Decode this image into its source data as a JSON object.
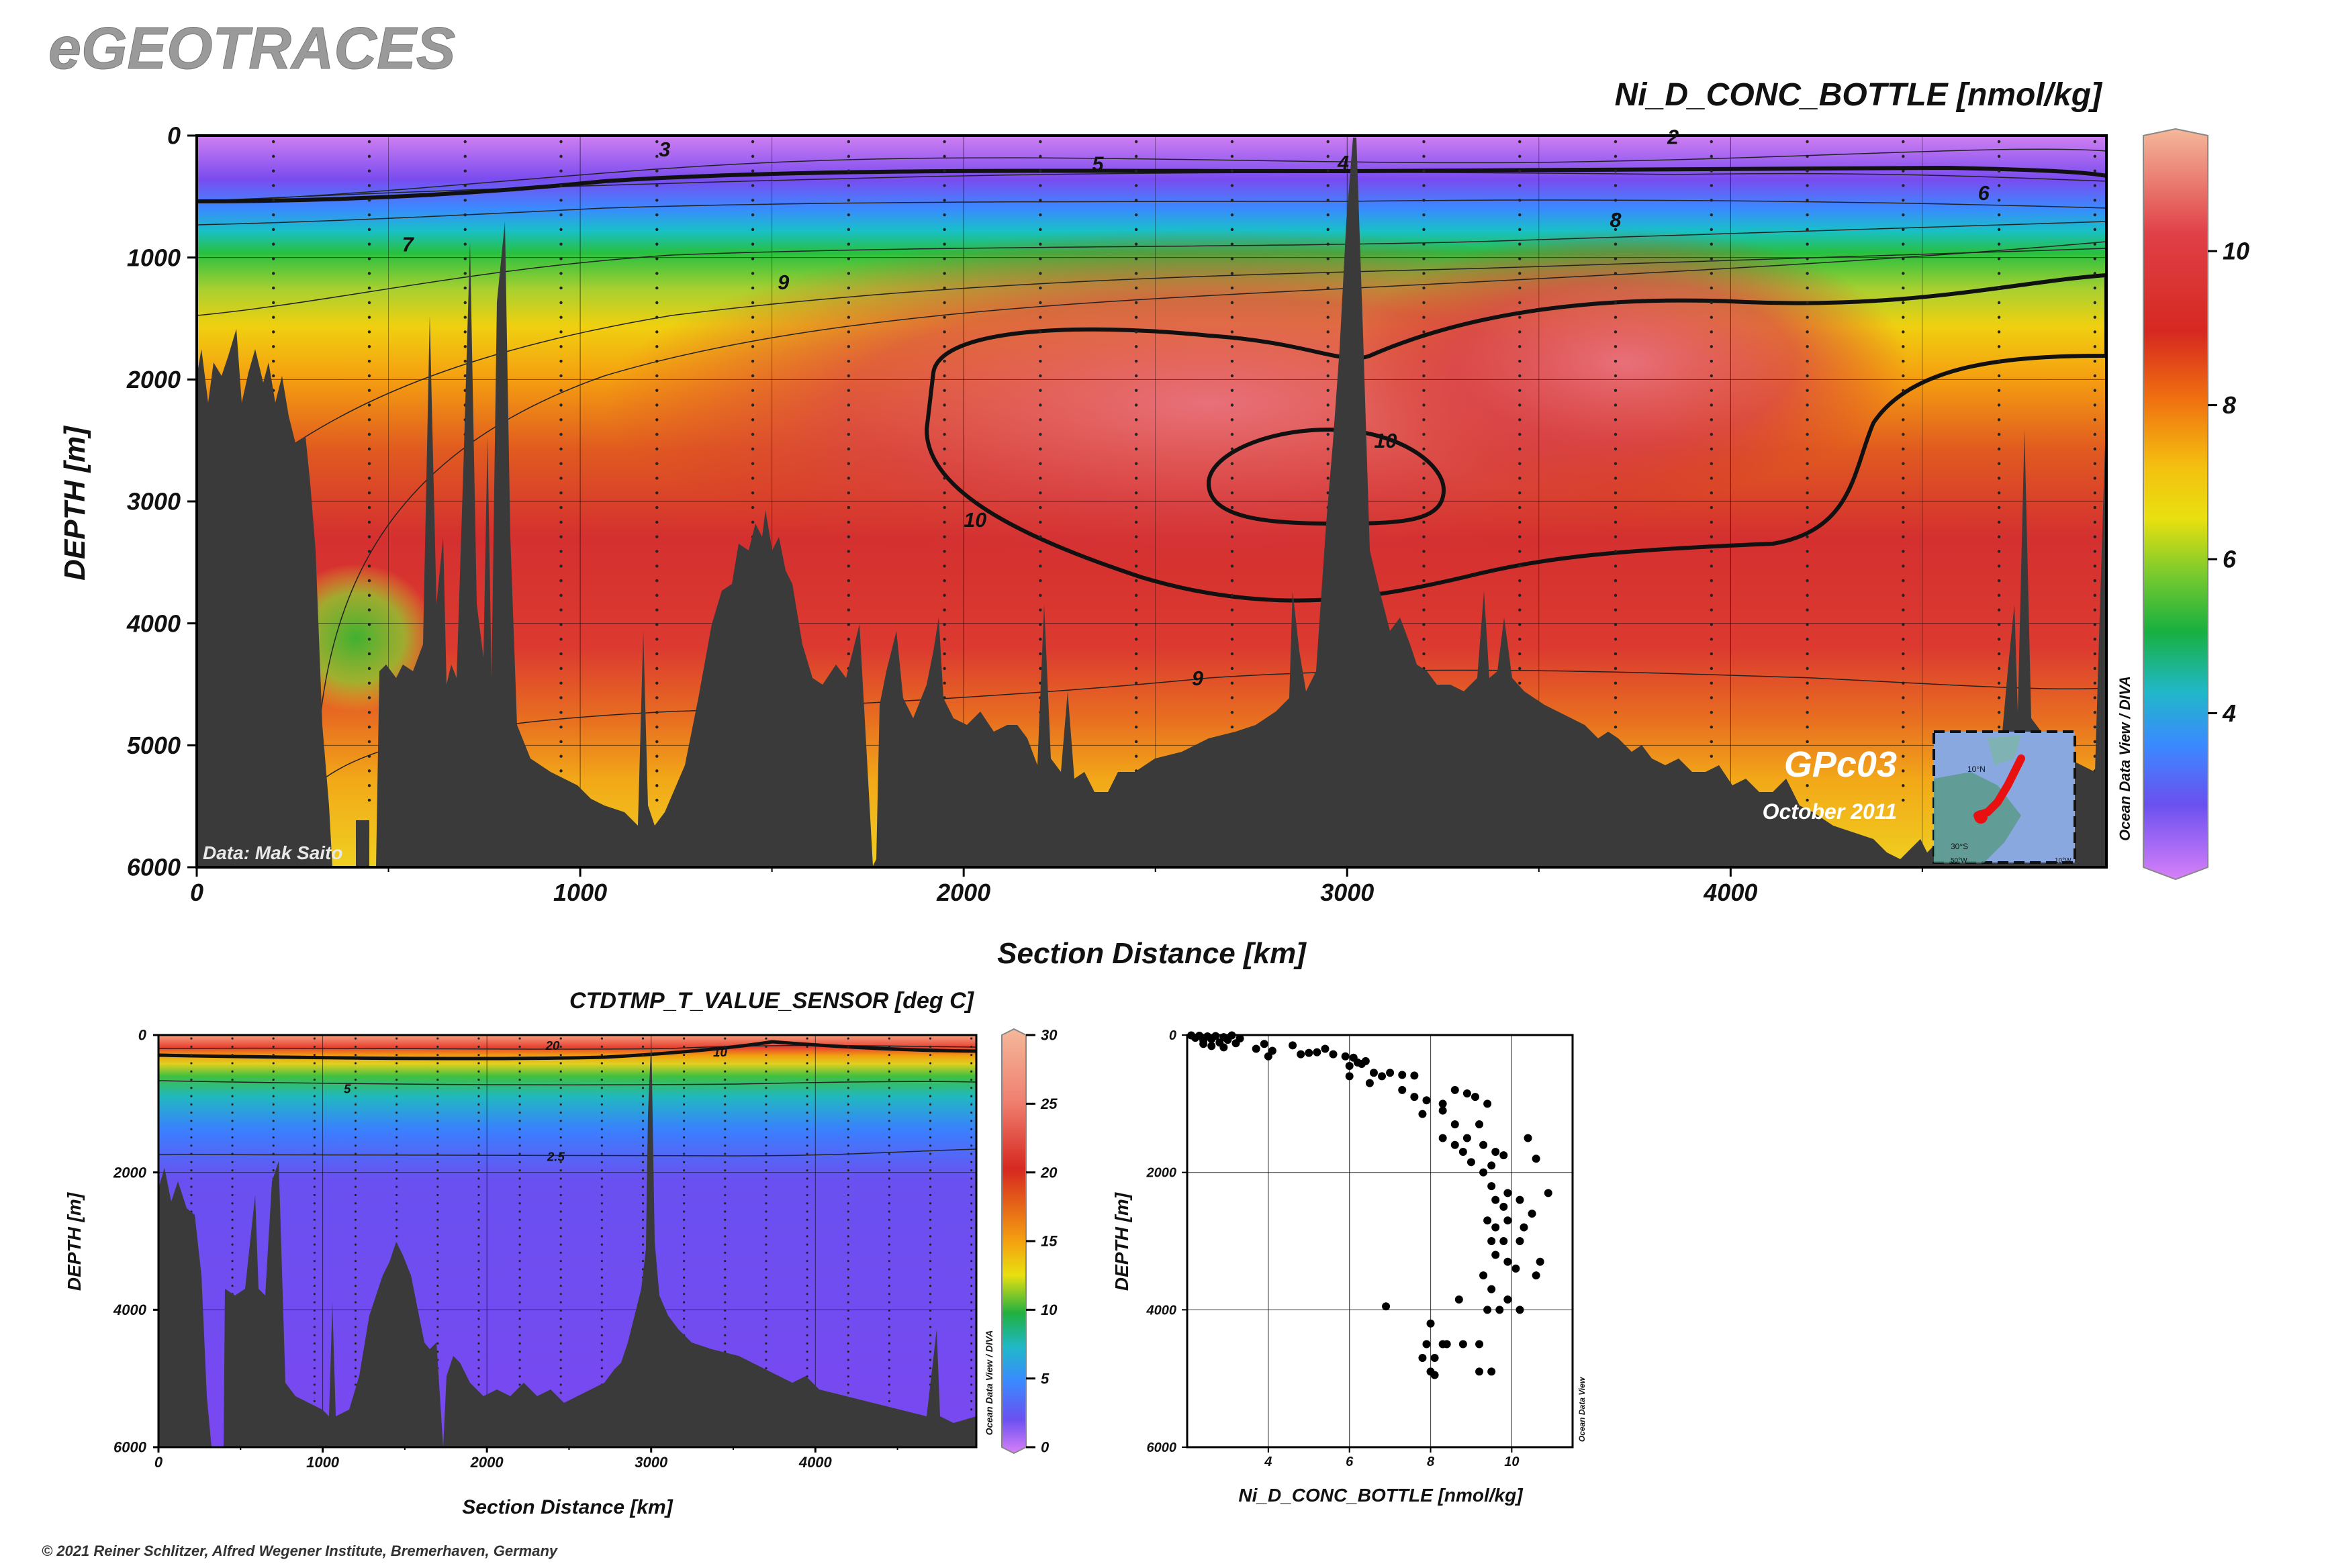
{
  "brand": "eGEOTRACES",
  "copyright": "© 2021 Reiner Schlitzer, Alfred Wegener Institute, Bremerhaven, Germany",
  "section_top": {
    "title": "Ni_D_CONC_BOTTLE [nmol/kg]",
    "xlabel": "Section Distance [km]",
    "ylabel": "DEPTH [m]",
    "credit": "Data: Mak Saito",
    "cruise": "GPc03",
    "date": "October 2011",
    "watermark": "Ocean Data View / DIVA",
    "map_labels": [
      "10°N",
      "30°S",
      "50°W",
      "10°W"
    ]
  },
  "section_bottom": {
    "title": "CTDTMP_T_VALUE_SENSOR [deg C]",
    "xlabel": "Section Distance [km]",
    "ylabel": "DEPTH [m]",
    "watermark": "Ocean Data View / DIVA"
  },
  "profile": {
    "xlabel": "Ni_D_CONC_BOTTLE [nmol/kg]",
    "ylabel": "DEPTH [m]",
    "watermark": "Ocean Data View"
  },
  "chart_data": [
    {
      "type": "heatmap",
      "name": "Ni_D_CONC_BOTTLE section",
      "title": "Ni_D_CONC_BOTTLE [nmol/kg]",
      "xlabel": "Section Distance [km]",
      "ylabel": "DEPTH [m]",
      "xlim": [
        0,
        4980
      ],
      "ylim": [
        6000,
        0
      ],
      "x_ticks": [
        0,
        1000,
        2000,
        3000,
        4000
      ],
      "y_ticks": [
        0,
        1000,
        2000,
        3000,
        4000,
        5000,
        6000
      ],
      "colorbar": {
        "range": [
          2,
          11.5
        ],
        "ticks": [
          4,
          6,
          8,
          10
        ]
      },
      "contour_labels": [
        {
          "value": "3",
          "x": 1220,
          "y": 110
        },
        {
          "value": "5",
          "x": 2350,
          "y": 230
        },
        {
          "value": "4",
          "x": 2990,
          "y": 220
        },
        {
          "value": "2",
          "x": 3850,
          "y": 10
        },
        {
          "value": "6",
          "x": 4660,
          "y": 470
        },
        {
          "value": "7",
          "x": 550,
          "y": 890
        },
        {
          "value": "8",
          "x": 3700,
          "y": 690
        },
        {
          "value": "9",
          "x": 1530,
          "y": 1200
        },
        {
          "value": "10",
          "x": 3100,
          "y": 2500
        },
        {
          "value": "10",
          "x": 2030,
          "y": 3150
        },
        {
          "value": "9",
          "x": 2610,
          "y": 4450
        }
      ],
      "grid": true
    },
    {
      "type": "heatmap",
      "name": "CTDTMP_T_VALUE_SENSOR section",
      "title": "CTDTMP_T_VALUE_SENSOR [deg C]",
      "xlabel": "Section Distance [km]",
      "ylabel": "DEPTH [m]",
      "xlim": [
        0,
        4980
      ],
      "ylim": [
        6000,
        0
      ],
      "x_ticks": [
        0,
        1000,
        2000,
        3000,
        4000
      ],
      "y_ticks": [
        0,
        2000,
        4000,
        6000
      ],
      "colorbar": {
        "range": [
          0,
          30
        ],
        "ticks": [
          0,
          5,
          10,
          15,
          20,
          25,
          30
        ]
      },
      "contour_labels": [
        {
          "value": "20",
          "x": 2400,
          "y": 150
        },
        {
          "value": "10",
          "x": 3420,
          "y": 250
        },
        {
          "value": "5",
          "x": 1150,
          "y": 780
        },
        {
          "value": "2.5",
          "x": 2420,
          "y": 1770
        }
      ],
      "grid": true
    },
    {
      "type": "scatter",
      "name": "Ni vs depth profile",
      "xlabel": "Ni_D_CONC_BOTTLE [nmol/kg]",
      "ylabel": "DEPTH [m]",
      "xlim": [
        2,
        11.5
      ],
      "ylim": [
        6000,
        0
      ],
      "x_ticks": [
        4,
        6,
        8,
        10
      ],
      "y_ticks": [
        0,
        2000,
        4000,
        6000
      ],
      "grid": true,
      "points": [
        [
          2.1,
          5
        ],
        [
          2.2,
          40
        ],
        [
          2.3,
          10
        ],
        [
          2.4,
          80
        ],
        [
          2.5,
          20
        ],
        [
          2.6,
          60
        ],
        [
          2.7,
          15
        ],
        [
          2.8,
          110
        ],
        [
          2.9,
          30
        ],
        [
          3.0,
          70
        ],
        [
          3.1,
          5
        ],
        [
          3.2,
          120
        ],
        [
          3.3,
          50
        ],
        [
          2.4,
          130
        ],
        [
          2.6,
          160
        ],
        [
          2.9,
          180
        ],
        [
          3.7,
          200
        ],
        [
          3.9,
          130
        ],
        [
          4.0,
          310
        ],
        [
          4.1,
          230
        ],
        [
          4.6,
          150
        ],
        [
          4.8,
          280
        ],
        [
          5.0,
          260
        ],
        [
          5.2,
          250
        ],
        [
          5.4,
          200
        ],
        [
          5.6,
          280
        ],
        [
          5.9,
          310
        ],
        [
          6.0,
          450
        ],
        [
          6.1,
          330
        ],
        [
          6.2,
          400
        ],
        [
          6.3,
          420
        ],
        [
          6.4,
          380
        ],
        [
          6.6,
          550
        ],
        [
          6.8,
          600
        ],
        [
          7.0,
          550
        ],
        [
          7.3,
          580
        ],
        [
          7.6,
          590
        ],
        [
          6.0,
          600
        ],
        [
          6.5,
          700
        ],
        [
          7.3,
          800
        ],
        [
          7.6,
          900
        ],
        [
          7.9,
          950
        ],
        [
          8.3,
          1000
        ],
        [
          8.6,
          800
        ],
        [
          8.9,
          850
        ],
        [
          9.1,
          900
        ],
        [
          9.4,
          1000
        ],
        [
          7.8,
          1150
        ],
        [
          8.3,
          1100
        ],
        [
          8.6,
          1300
        ],
        [
          9.2,
          1300
        ],
        [
          8.3,
          1500
        ],
        [
          8.6,
          1600
        ],
        [
          8.9,
          1500
        ],
        [
          9.3,
          1600
        ],
        [
          9.6,
          1700
        ],
        [
          8.8,
          1700
        ],
        [
          9.0,
          1850
        ],
        [
          9.5,
          1900
        ],
        [
          9.8,
          1750
        ],
        [
          10.4,
          1500
        ],
        [
          10.6,
          1800
        ],
        [
          10.9,
          2300
        ],
        [
          9.3,
          2000
        ],
        [
          9.5,
          2200
        ],
        [
          9.6,
          2400
        ],
        [
          9.8,
          2500
        ],
        [
          9.9,
          2300
        ],
        [
          10.2,
          2400
        ],
        [
          10.5,
          2600
        ],
        [
          9.4,
          2700
        ],
        [
          9.6,
          2800
        ],
        [
          9.9,
          2700
        ],
        [
          10.3,
          2800
        ],
        [
          9.5,
          3000
        ],
        [
          9.8,
          3000
        ],
        [
          10.2,
          3000
        ],
        [
          9.6,
          3200
        ],
        [
          9.9,
          3300
        ],
        [
          10.1,
          3400
        ],
        [
          10.7,
          3300
        ],
        [
          10.6,
          3500
        ],
        [
          9.3,
          3500
        ],
        [
          9.5,
          3700
        ],
        [
          9.9,
          3850
        ],
        [
          10.2,
          4000
        ],
        [
          9.4,
          4000
        ],
        [
          9.7,
          4000
        ],
        [
          8.7,
          3850
        ],
        [
          6.9,
          3950
        ],
        [
          8.0,
          4200
        ],
        [
          7.9,
          4500
        ],
        [
          8.3,
          4500
        ],
        [
          8.1,
          4700
        ],
        [
          7.8,
          4700
        ],
        [
          8.8,
          4500
        ],
        [
          9.2,
          4500
        ],
        [
          8.0,
          4900
        ],
        [
          8.1,
          4950
        ],
        [
          9.2,
          4900
        ],
        [
          9.5,
          4900
        ],
        [
          8.4,
          4500
        ]
      ]
    }
  ]
}
